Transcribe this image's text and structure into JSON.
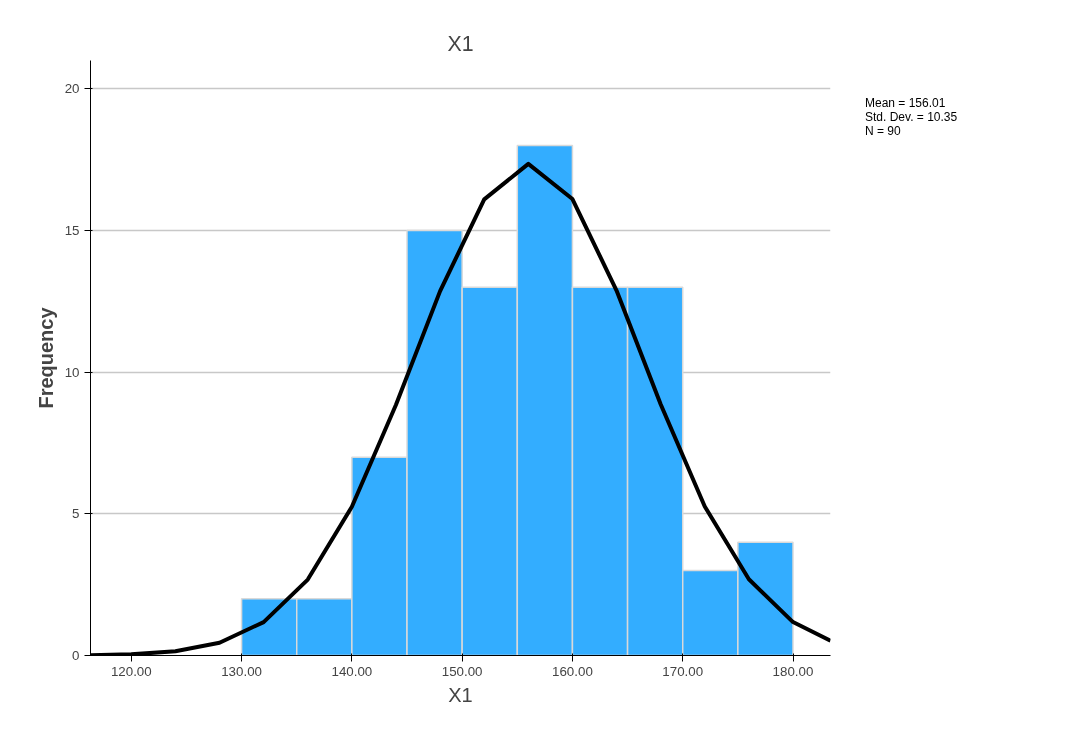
{
  "chart_data": {
    "type": "histogram",
    "title": "X1",
    "xlabel": "X1",
    "ylabel": "Frequency",
    "annotations": [
      "Mean = 156.01",
      "Std. Dev. = 10.35",
      "N = 90"
    ],
    "series": [
      {
        "color": "#33adff",
        "bins": [
          130,
          135,
          140,
          145,
          150,
          155,
          160,
          165,
          170,
          175,
          180
        ],
        "values": [
          2,
          2,
          7,
          15,
          13,
          18,
          13,
          13,
          3,
          4
        ]
      },
      {
        "type": "line",
        "color": "#000000",
        "x": [
          116.3,
          120,
          124,
          128,
          132,
          136,
          140,
          144,
          148,
          152,
          156,
          160,
          164,
          168,
          172,
          176,
          180,
          183.4
        ],
        "values": [
          0.01,
          0.04,
          0.15,
          0.45,
          1.18,
          2.68,
          5.25,
          8.85,
          12.86,
          16.1,
          17.35,
          16.11,
          12.88,
          8.87,
          5.26,
          2.69,
          1.18,
          0.52
        ]
      }
    ],
    "xlim": [
      116.3,
      183.4
    ],
    "ylim": [
      0,
      21
    ],
    "xticks": [
      {
        "value": 120,
        "label": "120.00"
      },
      {
        "value": 130,
        "label": "130.00"
      },
      {
        "value": 140,
        "label": "140.00"
      },
      {
        "value": 150,
        "label": "150.00"
      },
      {
        "value": 160,
        "label": "160.00"
      },
      {
        "value": 170,
        "label": "170.00"
      },
      {
        "value": 180,
        "label": "180.00"
      }
    ],
    "yticks": [
      0,
      5,
      10,
      15,
      20
    ],
    "grid": "y",
    "line_style": "solid",
    "marker": "none"
  }
}
